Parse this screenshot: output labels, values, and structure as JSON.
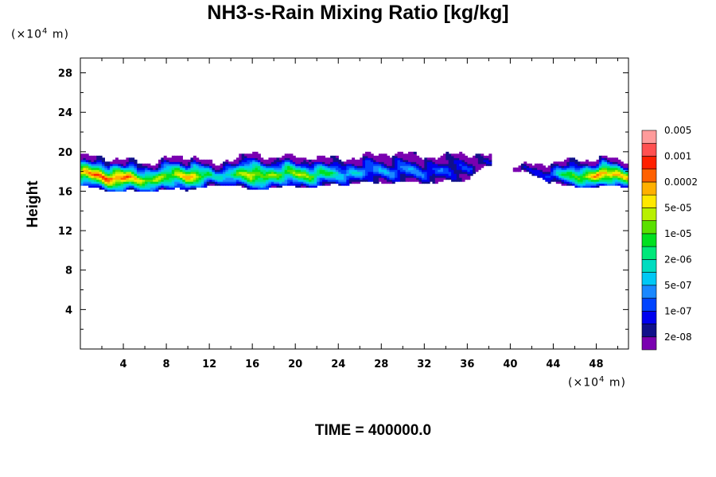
{
  "title": "NH3-s-Rain Mixing Ratio [kg/kg]",
  "y_unit": {
    "prefix": "(×10",
    "exp": "4",
    "suffix": " m)"
  },
  "x_unit": {
    "prefix": "(×10",
    "exp": "4",
    "suffix": " m)"
  },
  "time_label": "TIME = 400000.0",
  "chart_data": {
    "type": "heatmap",
    "title": "NH3-s-Rain Mixing Ratio [kg/kg]",
    "xlabel": "",
    "ylabel": "Height",
    "x_units": "x10^4 m",
    "y_units": "x10^4 m",
    "xlim": [
      0,
      51
    ],
    "ylim": [
      0,
      29.5
    ],
    "x_ticks": [
      4,
      8,
      12,
      16,
      20,
      24,
      28,
      32,
      36,
      40,
      44,
      48
    ],
    "y_ticks": [
      4,
      8,
      12,
      16,
      20,
      24,
      28
    ],
    "colorbar": {
      "colors": [
        "#7a00b0",
        "#10108a",
        "#0000ee",
        "#0044ff",
        "#1a88ff",
        "#00c8f5",
        "#00dcc0",
        "#00e87a",
        "#00e020",
        "#5ae000",
        "#b8f000",
        "#ffe800",
        "#ffb000",
        "#ff6000",
        "#ff2000",
        "#ff5050",
        "#ff9b9b"
      ],
      "labels": [
        "2e-08",
        "1e-07",
        "5e-07",
        "2e-06",
        "1e-05",
        "5e-05",
        "0.0002",
        "0.001",
        "0.005"
      ]
    },
    "layer": {
      "profile": [
        {
          "x": 0.0,
          "bottom": 16.5,
          "top": 19.6,
          "core": 0.85
        },
        {
          "x": 3.5,
          "bottom": 16.0,
          "top": 19.3,
          "core": 1.0
        },
        {
          "x": 6.0,
          "bottom": 16.0,
          "top": 18.8,
          "core": 0.75
        },
        {
          "x": 8.5,
          "bottom": 16.2,
          "top": 19.4,
          "core": 0.7
        },
        {
          "x": 10.5,
          "bottom": 16.3,
          "top": 19.6,
          "core": 0.9
        },
        {
          "x": 12.5,
          "bottom": 16.5,
          "top": 18.6,
          "core": 0.4
        },
        {
          "x": 14.0,
          "bottom": 16.8,
          "top": 19.4,
          "core": 0.55
        },
        {
          "x": 16.0,
          "bottom": 16.0,
          "top": 19.7,
          "core": 0.8
        },
        {
          "x": 18.0,
          "bottom": 16.5,
          "top": 19.5,
          "core": 0.65
        },
        {
          "x": 21.0,
          "bottom": 16.5,
          "top": 19.5,
          "core": 0.7
        },
        {
          "x": 23.5,
          "bottom": 16.6,
          "top": 19.3,
          "core": 0.5
        },
        {
          "x": 26.0,
          "bottom": 16.9,
          "top": 19.4,
          "core": 0.35
        },
        {
          "x": 28.5,
          "bottom": 16.9,
          "top": 19.9,
          "core": 0.3
        },
        {
          "x": 31.0,
          "bottom": 16.9,
          "top": 19.7,
          "core": 0.3
        },
        {
          "x": 33.5,
          "bottom": 17.0,
          "top": 19.4,
          "core": 0.25
        },
        {
          "x": 35.5,
          "bottom": 17.0,
          "top": 19.9,
          "core": 0.2
        },
        {
          "x": 37.5,
          "bottom": 18.5,
          "top": 19.6,
          "core": 0.1
        },
        {
          "x": 41.0,
          "bottom": 18.0,
          "top": 18.5,
          "core": 0.05
        },
        {
          "x": 43.0,
          "bottom": 17.3,
          "top": 18.8,
          "core": 0.2
        },
        {
          "x": 45.5,
          "bottom": 16.4,
          "top": 19.1,
          "core": 0.6
        },
        {
          "x": 48.5,
          "bottom": 16.5,
          "top": 19.3,
          "core": 0.95
        },
        {
          "x": 51.0,
          "bottom": 16.5,
          "top": 19.2,
          "core": 0.8
        }
      ]
    }
  }
}
